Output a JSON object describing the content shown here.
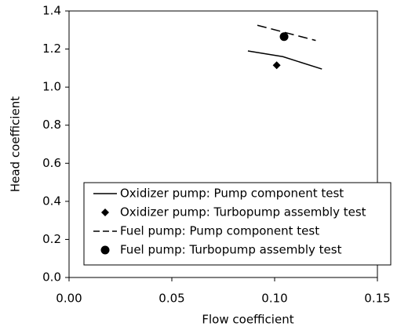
{
  "chart_data": {
    "type": "line",
    "xlabel": "Flow coefficient",
    "ylabel": "Head coefficient",
    "xlim": [
      0,
      0.15
    ],
    "ylim": [
      0,
      1.4
    ],
    "xticks": [
      {
        "value": 0,
        "label": "0.00"
      },
      {
        "value": 0.05,
        "label": "0.05"
      },
      {
        "value": 0.1,
        "label": "0.10"
      },
      {
        "value": 0.15,
        "label": "0.15"
      }
    ],
    "yticks": [
      {
        "value": 0,
        "label": "0.0"
      },
      {
        "value": 0.2,
        "label": "0.2"
      },
      {
        "value": 0.4,
        "label": "0.4"
      },
      {
        "value": 0.6,
        "label": "0.6"
      },
      {
        "value": 0.8,
        "label": "0.8"
      },
      {
        "value": 1.0,
        "label": "1.0"
      },
      {
        "value": 1.2,
        "label": "1.2"
      },
      {
        "value": 1.4,
        "label": "1.4"
      }
    ],
    "legend": "lower right",
    "series": [
      {
        "name": "Oxidizer pump: Pump component test",
        "color": "#000000",
        "line": "solid",
        "marker": "none",
        "x": [
          0.087,
          0.104,
          0.123
        ],
        "values": [
          1.19,
          1.16,
          1.095
        ]
      },
      {
        "name": "Oxidizer pump: Turbopump assembly test",
        "color": "#000000",
        "line": "none",
        "marker": "diamond",
        "x": [
          0.101
        ],
        "values": [
          1.115
        ]
      },
      {
        "name": "Fuel pump: Pump component test",
        "color": "#000000",
        "line": "dashed",
        "marker": "none",
        "x": [
          0.0916,
          0.12
        ],
        "values": [
          1.325,
          1.245
        ]
      },
      {
        "name": "Fuel pump: Turbopump assembly test",
        "color": "#000000",
        "line": "none",
        "marker": "circle",
        "x": [
          0.1046
        ],
        "values": [
          1.265
        ]
      }
    ]
  }
}
